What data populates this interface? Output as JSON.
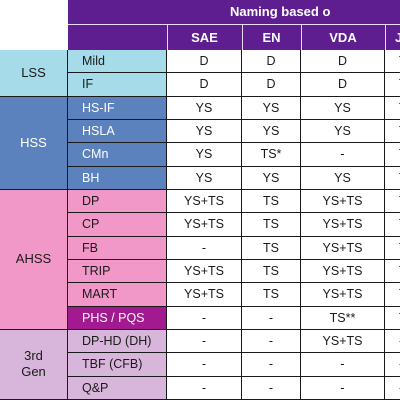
{
  "header": {
    "title": "Naming based o",
    "columns": [
      "SAE",
      "EN",
      "VDA",
      "JFS"
    ]
  },
  "groups": [
    {
      "label": "LSS",
      "rows": [
        {
          "name": "Mild",
          "values": [
            "D",
            "D",
            "D",
            "TS+"
          ]
        },
        {
          "name": "IF",
          "values": [
            "D",
            "D",
            "D",
            "TS+"
          ]
        }
      ]
    },
    {
      "label": "HSS",
      "rows": [
        {
          "name": "HS-IF",
          "values": [
            "YS",
            "YS",
            "YS",
            "TS"
          ]
        },
        {
          "name": "HSLA",
          "values": [
            "YS",
            "YS",
            "YS",
            "TS"
          ]
        },
        {
          "name": "CMn",
          "values": [
            "YS",
            "TS*",
            "-",
            "TS"
          ]
        },
        {
          "name": "BH",
          "values": [
            "YS",
            "YS",
            "YS",
            "TS"
          ]
        }
      ]
    },
    {
      "label": "AHSS",
      "rows": [
        {
          "name": "DP",
          "values": [
            "YS+TS",
            "TS",
            "YS+TS",
            "TS"
          ]
        },
        {
          "name": "CP",
          "values": [
            "YS+TS",
            "TS",
            "YS+TS",
            "TS"
          ]
        },
        {
          "name": "FB",
          "values": [
            "-",
            "TS",
            "YS+TS",
            "TS"
          ]
        },
        {
          "name": "TRIP",
          "values": [
            "YS+TS",
            "TS",
            "YS+TS",
            "TS"
          ]
        },
        {
          "name": "MART",
          "values": [
            "YS+TS",
            "TS",
            "YS+TS",
            "TS"
          ]
        },
        {
          "name": "PHS / PQS",
          "values": [
            "-",
            "-",
            "TS**",
            "TS"
          ]
        }
      ]
    },
    {
      "label": "3rd\nGen",
      "rows": [
        {
          "name": "DP-HD (DH)",
          "values": [
            "-",
            "-",
            "YS+TS",
            "-"
          ]
        },
        {
          "name": "TBF (CFB)",
          "values": [
            "-",
            "-",
            "-",
            "-"
          ]
        },
        {
          "name": "Q&P",
          "values": [
            "-",
            "-",
            "-",
            "-"
          ]
        }
      ]
    }
  ],
  "colors": {
    "header": "#5e1e8f",
    "lss": "#a6dcea",
    "hss": "#5b82bd",
    "ahss": "#f298c8",
    "phs_highlight": "#a3198f",
    "gen3": "#d8b5da"
  }
}
